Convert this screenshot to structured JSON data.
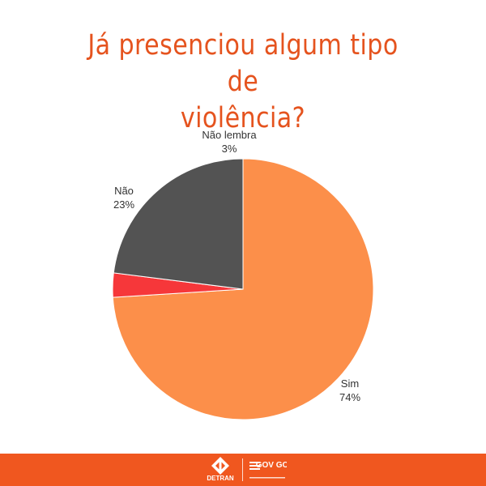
{
  "chart_data": {
    "type": "pie",
    "title": "Já presenciou algum tipo de violência?",
    "slices": [
      {
        "label": "Sim",
        "value": 74,
        "value_label": "74%",
        "color": "#fc8f4a"
      },
      {
        "label": "Não lembra",
        "value": 3,
        "value_label": "3%",
        "color": "#f6373a"
      },
      {
        "label": "Não",
        "value": 23,
        "value_label": "23%",
        "color": "#535353"
      }
    ],
    "start_angle_deg": 0,
    "direction": "clockwise"
  },
  "footer": {
    "background": "#f0571f",
    "logos": [
      {
        "name": "detran-goias-logo",
        "text": "DETRAN"
      },
      {
        "name": "gov-go-logo",
        "text": "GOV GO"
      }
    ]
  }
}
